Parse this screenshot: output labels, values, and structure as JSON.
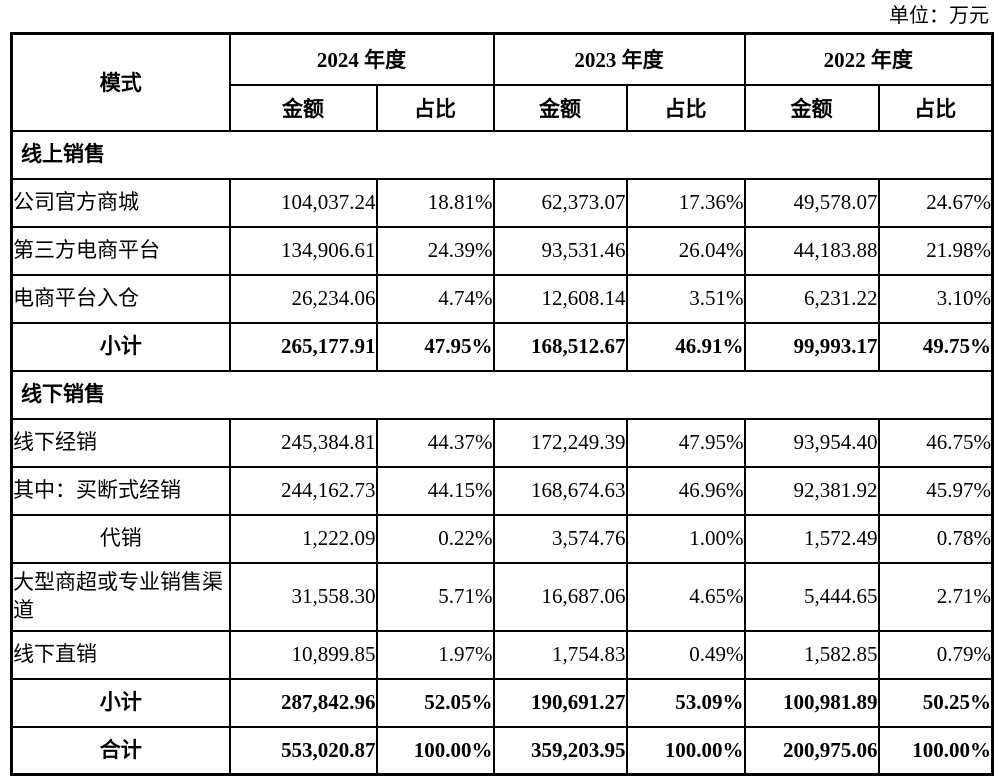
{
  "unit_label": "单位：万元",
  "header": {
    "mode": "模式",
    "years": [
      "2024 年度",
      "2023 年度",
      "2022 年度"
    ],
    "amount": "金额",
    "ratio": "占比"
  },
  "rows": [
    {
      "type": "section",
      "label": "线上销售",
      "label_align": "left",
      "values": []
    },
    {
      "type": "data",
      "label": "公司官方商城",
      "label_align": "left",
      "values": [
        "104,037.24",
        "18.81%",
        "62,373.07",
        "17.36%",
        "49,578.07",
        "24.67%"
      ]
    },
    {
      "type": "data",
      "label": "第三方电商平台",
      "label_align": "left",
      "values": [
        "134,906.61",
        "24.39%",
        "93,531.46",
        "26.04%",
        "44,183.88",
        "21.98%"
      ]
    },
    {
      "type": "data",
      "label": "电商平台入仓",
      "label_align": "left",
      "values": [
        "26,234.06",
        "4.74%",
        "12,608.14",
        "3.51%",
        "6,231.22",
        "3.10%"
      ]
    },
    {
      "type": "subtotal",
      "label": "小计",
      "label_align": "center",
      "values": [
        "265,177.91",
        "47.95%",
        "168,512.67",
        "46.91%",
        "99,993.17",
        "49.75%"
      ]
    },
    {
      "type": "section",
      "label": "线下销售",
      "label_align": "left",
      "values": []
    },
    {
      "type": "data",
      "label": "线下经销",
      "label_align": "left",
      "values": [
        "245,384.81",
        "44.37%",
        "172,249.39",
        "47.95%",
        "93,954.40",
        "46.75%"
      ]
    },
    {
      "type": "data",
      "label": "其中：买断式经销",
      "label_align": "left",
      "values": [
        "244,162.73",
        "44.15%",
        "168,674.63",
        "46.96%",
        "92,381.92",
        "45.97%"
      ]
    },
    {
      "type": "data",
      "label": "代销",
      "label_align": "center",
      "values": [
        "1,222.09",
        "0.22%",
        "3,574.76",
        "1.00%",
        "1,572.49",
        "0.78%"
      ]
    },
    {
      "type": "data",
      "label": "大型商超或专业销售渠道",
      "label_align": "left",
      "tall": true,
      "values": [
        "31,558.30",
        "5.71%",
        "16,687.06",
        "4.65%",
        "5,444.65",
        "2.71%"
      ]
    },
    {
      "type": "data",
      "label": "线下直销",
      "label_align": "left",
      "values": [
        "10,899.85",
        "1.97%",
        "1,754.83",
        "0.49%",
        "1,582.85",
        "0.79%"
      ]
    },
    {
      "type": "subtotal",
      "label": "小计",
      "label_align": "center",
      "values": [
        "287,842.96",
        "52.05%",
        "190,691.27",
        "53.09%",
        "100,981.89",
        "50.25%"
      ]
    },
    {
      "type": "total",
      "label": "合计",
      "label_align": "center",
      "values": [
        "553,020.87",
        "100.00%",
        "359,203.95",
        "100.00%",
        "200,975.06",
        "100.00%"
      ]
    }
  ]
}
